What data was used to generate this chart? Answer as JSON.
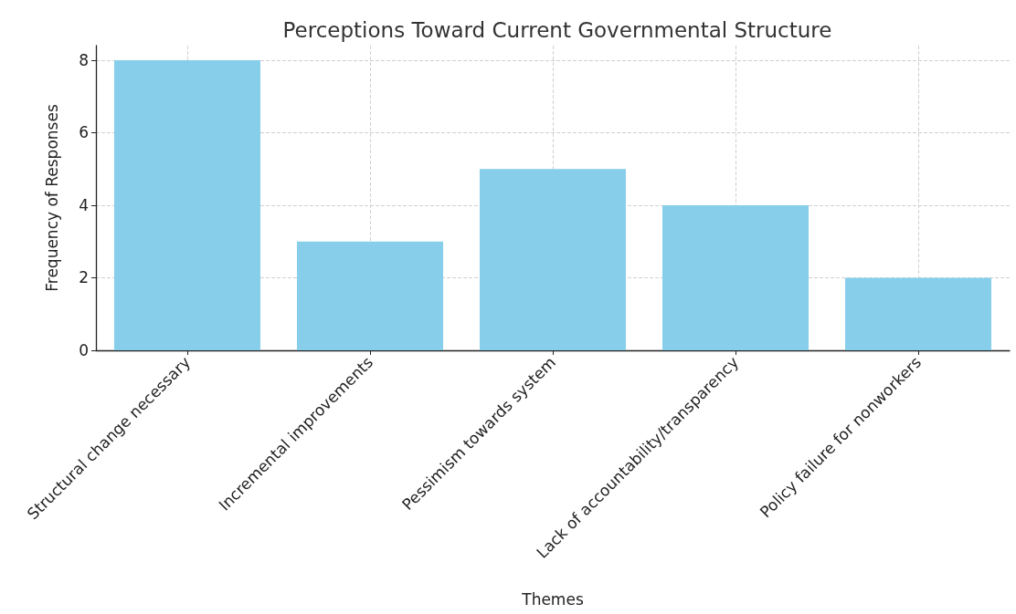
{
  "chart_data": {
    "type": "bar",
    "title": "Perceptions Toward Current Governmental Structure",
    "xlabel": "Themes",
    "ylabel": "Frequency of Responses",
    "categories": [
      "Structural change necessary",
      "Incremental improvements",
      "Pessimism towards system",
      "Lack of accountability/transparency",
      "Policy failure for nonworkers"
    ],
    "values": [
      8,
      3,
      5,
      4,
      2
    ],
    "color": "#87ceeb",
    "ylim": [
      0,
      8.4
    ],
    "yticks": [
      0,
      2,
      4,
      6,
      8
    ],
    "grid": true
  }
}
